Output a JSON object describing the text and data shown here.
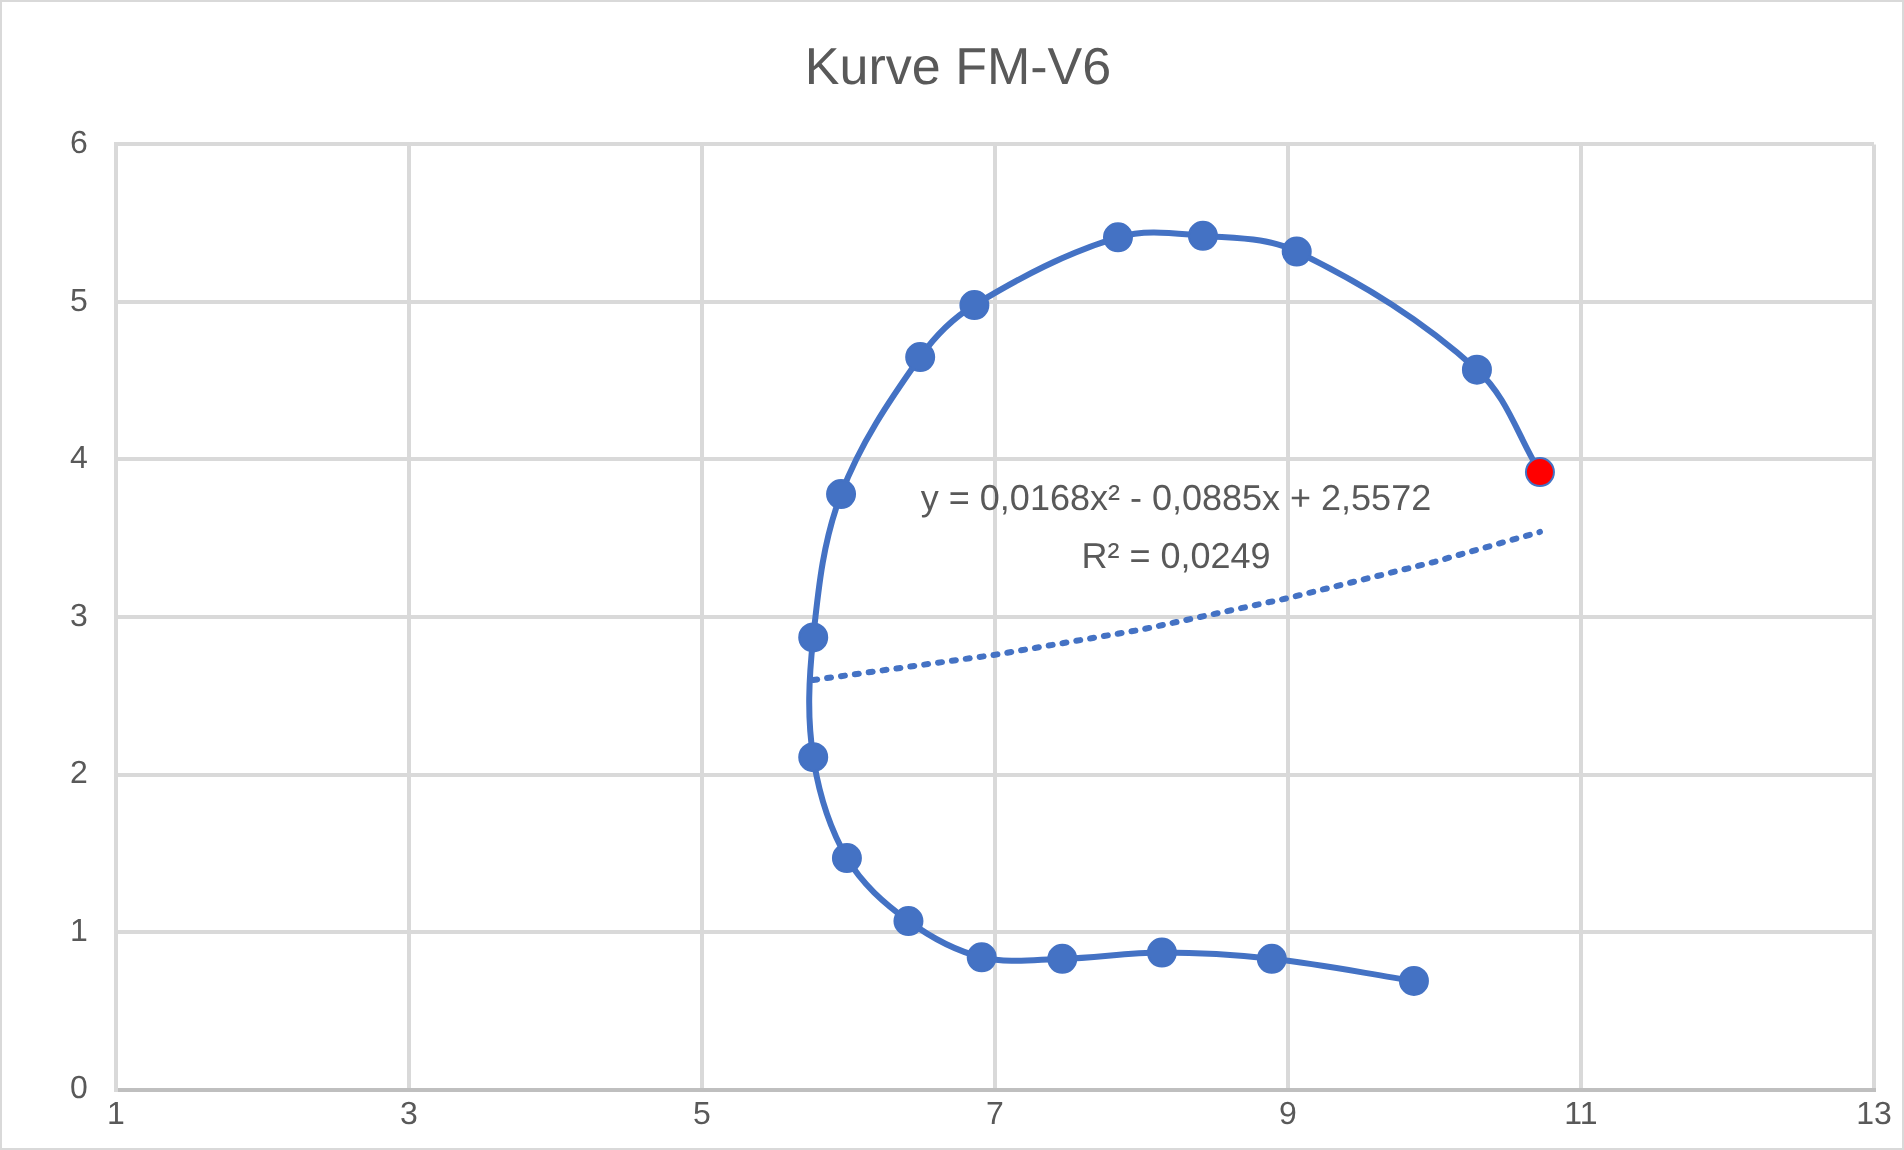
{
  "chart_data": {
    "type": "line",
    "title": "Kurve FM-V6",
    "xlim": [
      1,
      13
    ],
    "xticks": [
      1,
      3,
      5,
      7,
      9,
      11,
      13
    ],
    "ylim": [
      0,
      6
    ],
    "yticks": [
      0,
      1,
      2,
      3,
      4,
      5,
      6
    ],
    "grid": true,
    "legend": false,
    "marker": "circle",
    "series": [
      {
        "type": "line",
        "color": "#4472c4",
        "colors": [
          "#4472c4",
          "#4472c4",
          "#4472c4",
          "#4472c4",
          "#4472c4",
          "#4472c4",
          "#4472c4",
          "#4472c4",
          "#4472c4",
          "#4472c4",
          "#4472c4",
          "#4472c4",
          "#4472c4",
          "#4472c4",
          "#4472c4",
          "#4472c4",
          "#ff0000"
        ],
        "x": [
          9.86,
          8.89,
          8.14,
          7.46,
          6.91,
          6.41,
          5.99,
          5.76,
          5.76,
          5.95,
          6.49,
          6.86,
          7.84,
          8.42,
          9.06,
          10.29,
          10.72
        ],
        "values": [
          0.69,
          0.83,
          0.87,
          0.83,
          0.84,
          1.07,
          1.47,
          2.11,
          2.87,
          3.78,
          4.65,
          4.98,
          5.41,
          5.42,
          5.32,
          4.57,
          3.92
        ]
      },
      {
        "type": "line",
        "color": "#4472c4",
        "line_style": "dotted",
        "marker": "none",
        "x": [
          5.76,
          7,
          8,
          9,
          10,
          10.72
        ],
        "values": [
          2.6,
          2.76,
          2.92,
          3.12,
          3.35,
          3.54
        ]
      }
    ],
    "annotations": [
      "y = 0,0168x² - 0,0885x + 2,5572",
      "R² = 0,0249"
    ]
  }
}
